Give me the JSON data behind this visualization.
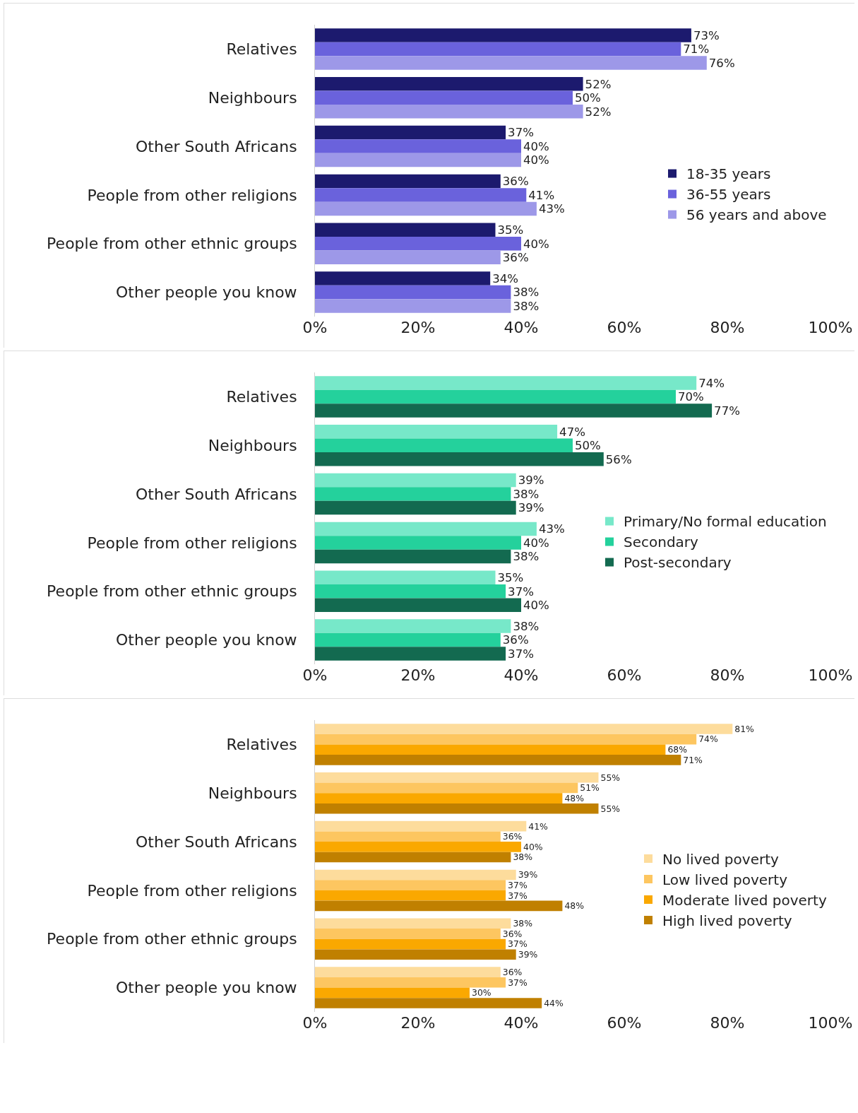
{
  "chart_data": [
    {
      "type": "bar",
      "orientation": "horizontal",
      "categories": [
        "Relatives",
        "Neighbours",
        "Other South Africans",
        "People from other religions",
        "People from other ethnic groups",
        "Other people you know"
      ],
      "series": [
        {
          "name": "18-35 years",
          "color": "#1c1a6e",
          "values": [
            73,
            52,
            37,
            36,
            35,
            34
          ],
          "value_labels": [
            "73%",
            "52%",
            "37%",
            "36%",
            "35%",
            "34%"
          ]
        },
        {
          "name": "36-55 years",
          "color": "#6a62dc",
          "values": [
            71,
            50,
            40,
            41,
            40,
            38
          ],
          "value_labels": [
            "71%",
            "50%",
            "40%",
            "41%",
            "40%",
            "38%"
          ]
        },
        {
          "name": "56 years and above",
          "color": "#9d98e8",
          "values": [
            76,
            52,
            40,
            43,
            36,
            38
          ],
          "value_labels": [
            "76%",
            "52%",
            "40%",
            "43%",
            "36%",
            "38%"
          ]
        }
      ],
      "xlim": [
        0,
        100
      ],
      "xticks": [
        {
          "value": 0,
          "label": "0%"
        },
        {
          "value": 20,
          "label": "20%"
        },
        {
          "value": 40,
          "label": "40%"
        },
        {
          "value": 60,
          "label": "60%"
        },
        {
          "value": 80,
          "label": "80%"
        },
        {
          "value": 100,
          "label": "100%"
        }
      ],
      "grid": false,
      "legend": "right"
    },
    {
      "type": "bar",
      "orientation": "horizontal",
      "categories": [
        "Relatives",
        "Neighbours",
        "Other South Africans",
        "People from other religions",
        "People from other ethnic groups",
        "Other people you know"
      ],
      "series": [
        {
          "name": "Primary/No formal education",
          "color": "#77e8c9",
          "values": [
            74,
            47,
            39,
            43,
            35,
            38
          ],
          "value_labels": [
            "74%",
            "47%",
            "39%",
            "43%",
            "35%",
            "38%"
          ]
        },
        {
          "name": "Secondary",
          "color": "#24d19c",
          "values": [
            70,
            50,
            38,
            40,
            37,
            36
          ],
          "value_labels": [
            "70%",
            "50%",
            "38%",
            "40%",
            "37%",
            "36%"
          ]
        },
        {
          "name": "Post-secondary",
          "color": "#136a50",
          "values": [
            77,
            56,
            39,
            38,
            40,
            37
          ],
          "value_labels": [
            "77%",
            "56%",
            "39%",
            "38%",
            "40%",
            "37%"
          ]
        }
      ],
      "xlim": [
        0,
        100
      ],
      "xticks": [
        {
          "value": 0,
          "label": "0%"
        },
        {
          "value": 20,
          "label": "20%"
        },
        {
          "value": 40,
          "label": "40%"
        },
        {
          "value": 60,
          "label": "60%"
        },
        {
          "value": 80,
          "label": "80%"
        },
        {
          "value": 100,
          "label": "100%"
        }
      ],
      "grid": false,
      "legend": "right"
    },
    {
      "type": "bar",
      "orientation": "horizontal",
      "categories": [
        "Relatives",
        "Neighbours",
        "Other South Africans",
        "People from other religions",
        "People from other ethnic groups",
        "Other people you know"
      ],
      "series": [
        {
          "name": "No lived poverty",
          "color": "#fddc9c",
          "values": [
            81,
            55,
            41,
            39,
            38,
            36
          ],
          "value_labels": [
            "81%",
            "55%",
            "41%",
            "39%",
            "38%",
            "36%"
          ]
        },
        {
          "name": "Low lived poverty",
          "color": "#fdc660",
          "values": [
            74,
            51,
            36,
            37,
            36,
            37
          ],
          "value_labels": [
            "74%",
            "51%",
            "36%",
            "37%",
            "36%",
            "37%"
          ]
        },
        {
          "name": "Moderate lived poverty",
          "color": "#faa800",
          "values": [
            68,
            48,
            40,
            37,
            37,
            30
          ],
          "value_labels": [
            "68%",
            "48%",
            "40%",
            "37%",
            "37%",
            "30%"
          ]
        },
        {
          "name": "High lived poverty",
          "color": "#c08000",
          "values": [
            71,
            55,
            38,
            48,
            39,
            44
          ],
          "value_labels": [
            "71%",
            "55%",
            "38%",
            "48%",
            "39%",
            "44%"
          ]
        }
      ],
      "xlim": [
        0,
        100
      ],
      "xticks": [
        {
          "value": 0,
          "label": "0%"
        },
        {
          "value": 20,
          "label": "20%"
        },
        {
          "value": 40,
          "label": "40%"
        },
        {
          "value": 60,
          "label": "60%"
        },
        {
          "value": 80,
          "label": "80%"
        },
        {
          "value": 100,
          "label": "100%"
        }
      ],
      "grid": false,
      "legend": "right"
    }
  ]
}
